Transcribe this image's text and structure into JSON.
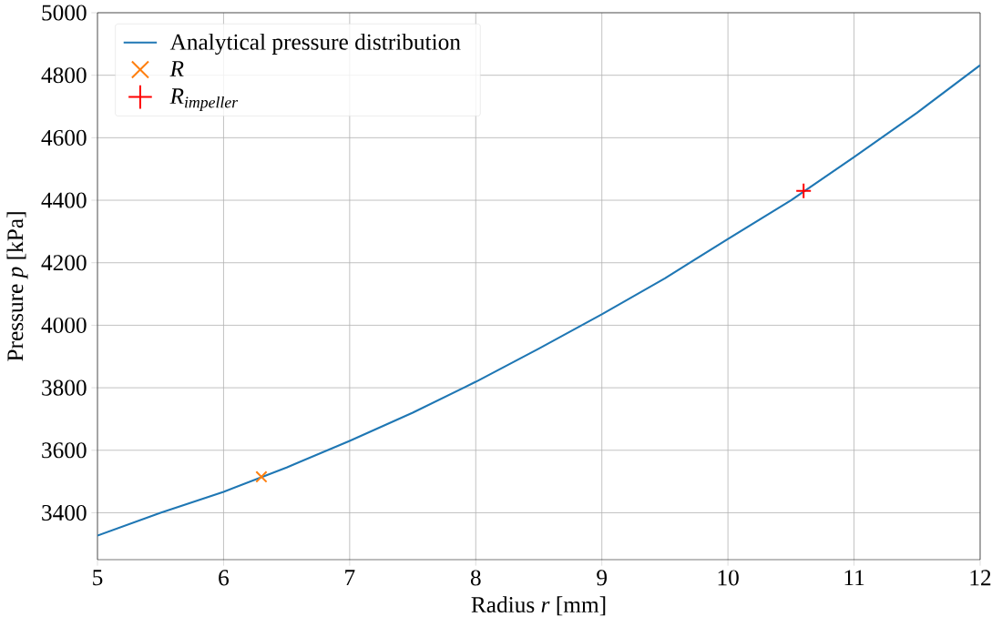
{
  "chart_data": {
    "type": "line",
    "xlabel": "Radius *r* [mm]",
    "ylabel": "Pressure *p* [kPa]",
    "xlim": [
      5,
      12
    ],
    "xticks": [
      5,
      6,
      7,
      8,
      9,
      10,
      11,
      12
    ],
    "ylim": [
      3250,
      5000
    ],
    "yticks": [
      3400,
      3600,
      3800,
      4000,
      4200,
      4400,
      4600,
      4800,
      5000
    ],
    "grid": true,
    "legend": "top left",
    "series": [
      {
        "name": "Analytical pressure distribution",
        "color": "#1f77b4",
        "marker": "none",
        "x": [
          5,
          5.5,
          6,
          6.5,
          7,
          7.5,
          8,
          8.5,
          9,
          9.5,
          10,
          10.5,
          11,
          11.5,
          12
        ],
        "values": [
          3327,
          3400,
          3467,
          3545,
          3630,
          3720,
          3819,
          3925,
          4035,
          4150,
          4276,
          4400,
          4538,
          4680,
          4832
        ]
      },
      {
        "name": "R",
        "type": "scatter",
        "color": "#ff7f0e",
        "marker": "cross",
        "x": [
          6.3
        ],
        "values": [
          3515
        ]
      },
      {
        "name": "R$_{impeller}$",
        "type": "scatter",
        "color": "#ff0000",
        "marker": "plus",
        "x": [
          10.6
        ],
        "values": [
          4430
        ]
      }
    ]
  }
}
